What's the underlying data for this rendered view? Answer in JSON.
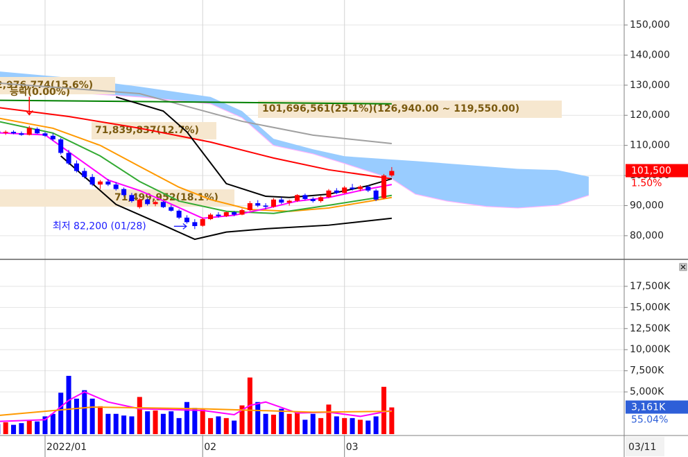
{
  "chart_data": {
    "type": "candlestick",
    "categories": [
      null,
      null,
      null,
      null,
      null,
      null,
      "2022/01",
      null,
      null,
      null,
      null,
      null,
      null,
      null,
      null,
      null,
      null,
      null,
      null,
      null,
      null,
      null,
      null,
      null,
      null,
      null,
      "02",
      null,
      null,
      null,
      null,
      null,
      null,
      null,
      null,
      null,
      null,
      null,
      null,
      null,
      null,
      null,
      null,
      null,
      "03",
      null,
      null,
      null,
      null,
      null,
      null
    ],
    "xlim": [
      0.28,
      79.5
    ],
    "current_date": "03/11",
    "up_color": "#ff0000",
    "down_color": "#0000ff",
    "grid": true,
    "open": [
      114800,
      114200,
      114500,
      114000,
      113500,
      115500,
      114000,
      113200,
      112000,
      107500,
      104000,
      101500,
      99500,
      97000,
      98000,
      97000,
      95500,
      93500,
      89500,
      92000,
      90500,
      91200,
      89500,
      88300,
      86000,
      84500,
      83300,
      85500,
      87000,
      86500,
      87800,
      87000,
      88500,
      90800,
      90000,
      89600,
      92000,
      91000,
      91600,
      93500,
      92200,
      91500,
      92800,
      95000,
      94200,
      96000,
      95500,
      96300,
      95000,
      92500,
      100000
    ],
    "high": [
      115500,
      115000,
      115000,
      114600,
      116500,
      116000,
      114500,
      114000,
      112500,
      108500,
      105000,
      102500,
      100500,
      98500,
      98800,
      97800,
      96000,
      94200,
      92500,
      92500,
      91800,
      91500,
      90200,
      88800,
      86800,
      85500,
      86000,
      87500,
      87800,
      88000,
      88200,
      89000,
      91500,
      91800,
      90800,
      92500,
      92800,
      92000,
      93800,
      94000,
      92800,
      93200,
      95500,
      95800,
      96500,
      97200,
      96800,
      96800,
      95500,
      100500,
      102800
    ],
    "low": [
      113800,
      113500,
      113700,
      113200,
      113300,
      113800,
      112800,
      111500,
      107000,
      103500,
      101000,
      99000,
      96500,
      95500,
      96500,
      95000,
      93000,
      91000,
      89000,
      90000,
      89800,
      89200,
      88000,
      85500,
      84000,
      82200,
      83000,
      85200,
      86000,
      86200,
      86500,
      86800,
      88200,
      89500,
      88800,
      89300,
      90500,
      90000,
      91200,
      91800,
      91000,
      91000,
      92500,
      93800,
      94000,
      95000,
      94800,
      94500,
      91500,
      92200,
      99500
    ],
    "close": [
      114200,
      114500,
      114000,
      113500,
      115800,
      114000,
      113200,
      112000,
      107500,
      104000,
      101500,
      99500,
      97000,
      98000,
      97000,
      95500,
      93500,
      91500,
      92000,
      90500,
      91200,
      89500,
      88300,
      86000,
      84500,
      83200,
      85500,
      87000,
      86500,
      87800,
      87000,
      88500,
      90800,
      90000,
      89600,
      92000,
      91000,
      91600,
      93500,
      92200,
      91500,
      92800,
      95000,
      94200,
      96000,
      95500,
      96300,
      95000,
      92000,
      100000,
      101500
    ],
    "ylim": [
      72600,
      158300
    ],
    "yticks": [
      {
        "value": 80000,
        "label": "80,000"
      },
      {
        "value": 90000,
        "label": "90,000"
      },
      {
        "value": 100000,
        "label": "100,000"
      },
      {
        "value": 110000,
        "label": "110,000"
      },
      {
        "value": 120000,
        "label": "120,000"
      },
      {
        "value": 130000,
        "label": "130,000"
      },
      {
        "value": 140000,
        "label": "140,000"
      },
      {
        "value": 150000,
        "label": "150,000"
      }
    ],
    "last_price": {
      "value": 101500,
      "label": "101,500"
    },
    "change_label": "1.50%",
    "low_label": "최저 82,200 (01/28)",
    "lines": [
      {
        "color": "#a0a0a0",
        "x": [
          0,
          18,
          31,
          40,
          50
        ],
        "values": [
          130700,
          127200,
          118000,
          113400,
          110600
        ]
      },
      {
        "color": "#008000",
        "x": [
          0,
          50
        ],
        "values": [
          125000,
          123800
        ]
      },
      {
        "color": "#ff0000",
        "x": [
          0,
          9,
          18,
          27,
          35,
          42,
          50
        ],
        "values": [
          122600,
          119600,
          115700,
          111100,
          105800,
          101900,
          98900
        ]
      },
      {
        "color": "#000000",
        "x": [
          15,
          21,
          24,
          27,
          29,
          34,
          37,
          42,
          47,
          50
        ],
        "values": [
          126100,
          121400,
          114500,
          104200,
          97300,
          93100,
          92700,
          93800,
          96600,
          98900
        ]
      },
      {
        "color": "#000000",
        "x": [
          8,
          12,
          15,
          21,
          25,
          29,
          34,
          42,
          50
        ],
        "values": [
          106500,
          97300,
          90400,
          83500,
          78800,
          81200,
          82300,
          83500,
          85800
        ]
      },
      {
        "color": "#ff9900",
        "x": [
          0,
          7,
          13,
          18,
          23,
          27,
          32,
          37,
          42,
          50
        ],
        "values": [
          119100,
          115700,
          110000,
          103000,
          96100,
          92000,
          88700,
          88100,
          89200,
          92700
        ]
      },
      {
        "color": "#33aa33",
        "x": [
          0,
          7,
          13,
          18,
          23,
          29,
          35,
          42,
          50
        ],
        "values": [
          118000,
          114100,
          106500,
          98000,
          91500,
          88100,
          87400,
          90100,
          93400
        ]
      },
      {
        "color": "#ff00ff",
        "x": [
          0,
          6,
          10,
          14,
          18,
          22,
          26,
          30,
          34,
          38,
          42,
          46,
          50
        ],
        "values": [
          114200,
          113500,
          106000,
          98500,
          95000,
          90500,
          85800,
          86800,
          89000,
          91500,
          92700,
          95000,
          97000
        ]
      }
    ],
    "cloud": {
      "color": "#99ccff",
      "x": [
        0,
        9,
        18,
        27,
        31,
        35,
        40,
        44,
        50,
        53,
        57,
        62,
        66,
        71,
        75
      ],
      "span_a": [
        134600,
        132500,
        129500,
        126100,
        121400,
        112200,
        108700,
        106400,
        105300,
        104800,
        104000,
        103000,
        102200,
        101800,
        99600
      ],
      "span_b": [
        128800,
        127600,
        126100,
        123800,
        119200,
        110000,
        107200,
        104000,
        98900,
        93800,
        91500,
        89700,
        89200,
        90100,
        93400
      ]
    },
    "annotations": [
      "2,976,774(15.6%)",
      "등락(0.00%)",
      "101,696,561(25.1%)(126,940.00 ~ 119,550.00)",
      "71,839,837(12.7%)",
      "71,499,952(18.1%)"
    ],
    "volume": {
      "values": [
        1200,
        1400,
        1100,
        1300,
        1600,
        1500,
        2100,
        2400,
        4900,
        6900,
        4200,
        5200,
        4200,
        3300,
        2400,
        2400,
        2200,
        2100,
        4400,
        2700,
        2800,
        2400,
        2700,
        1900,
        3800,
        3100,
        2900,
        1900,
        2100,
        1900,
        1600,
        3400,
        6700,
        3800,
        2400,
        2300,
        3000,
        2400,
        2700,
        1700,
        2400,
        1900,
        3500,
        2100,
        1900,
        1900,
        1700,
        1600,
        2100,
        5600,
        3161
      ],
      "ylim": [
        0,
        20200
      ],
      "yticks": [
        {
          "value": 5000,
          "label": "5,000K"
        },
        {
          "value": 7500,
          "label": "7,500K"
        },
        {
          "value": 10000,
          "label": "10,000K"
        },
        {
          "value": 12500,
          "label": "12,500K"
        },
        {
          "value": 15000,
          "label": "15,000K"
        },
        {
          "value": 17500,
          "label": "17,500K"
        }
      ],
      "last_volume": {
        "value": 3161,
        "label": "3,161K"
      },
      "ratio_label": "55.04%",
      "lines": [
        {
          "color": "#ff00ff",
          "x": [
            0,
            6,
            9,
            11,
            14,
            18,
            22,
            26,
            30,
            32,
            34,
            38,
            42,
            46,
            50
          ],
          "values": [
            1500,
            1700,
            4000,
            5000,
            3800,
            3000,
            2900,
            2800,
            2300,
            3400,
            3800,
            2500,
            2600,
            2100,
            2800
          ]
        },
        {
          "color": "#ff9900",
          "x": [
            0,
            12,
            26,
            40,
            50
          ],
          "values": [
            2200,
            3200,
            3000,
            2600,
            2700
          ]
        }
      ]
    }
  }
}
